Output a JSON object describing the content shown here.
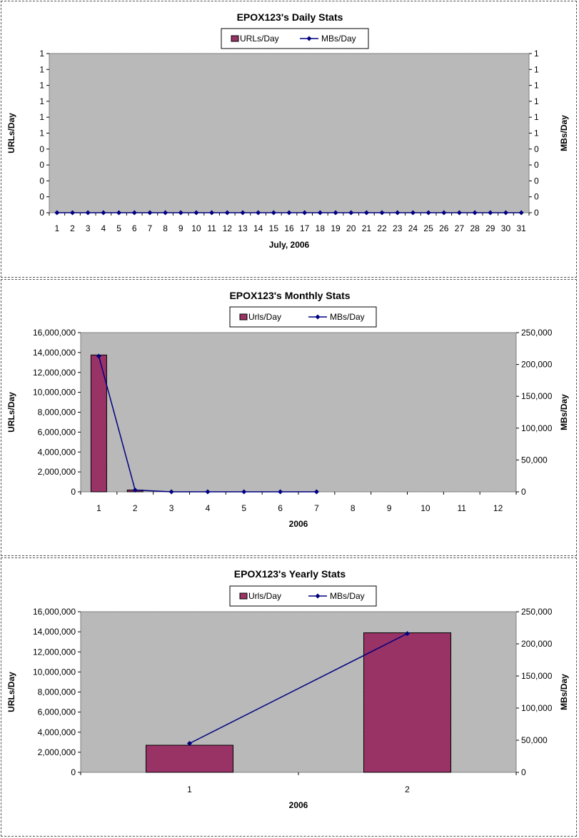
{
  "chart_data": [
    {
      "type": "bar",
      "title": "EPOX123's Daily Stats",
      "xlabel": "July, 2006",
      "ylabel": "URLs/Day",
      "y2label": "MBs/Day",
      "legend": {
        "placement": "top-center",
        "bar_label": "URLs/Day",
        "line_label": "MBs/Day"
      },
      "categories": [
        "1",
        "2",
        "3",
        "4",
        "5",
        "6",
        "7",
        "8",
        "9",
        "10",
        "11",
        "12",
        "13",
        "14",
        "15",
        "16",
        "17",
        "18",
        "19",
        "20",
        "21",
        "22",
        "23",
        "24",
        "25",
        "26",
        "27",
        "28",
        "29",
        "30",
        "31"
      ],
      "series": [
        {
          "name": "URLs/Day",
          "kind": "bar",
          "axis": "left",
          "values": [
            0,
            0,
            0,
            0,
            0,
            0,
            0,
            0,
            0,
            0,
            0,
            0,
            0,
            0,
            0,
            0,
            0,
            0,
            0,
            0,
            0,
            0,
            0,
            0,
            0,
            0,
            0,
            0,
            0,
            0,
            0
          ]
        },
        {
          "name": "MBs/Day",
          "kind": "line",
          "axis": "right",
          "values": [
            0,
            0,
            0,
            0,
            0,
            0,
            0,
            0,
            0,
            0,
            0,
            0,
            0,
            0,
            0,
            0,
            0,
            0,
            0,
            0,
            0,
            0,
            0,
            0,
            0,
            0,
            0,
            0,
            0,
            0,
            0
          ]
        }
      ],
      "ylim": [
        0,
        1
      ],
      "y2lim": [
        0,
        1
      ],
      "yticks": [
        "0",
        "0",
        "0",
        "0",
        "0",
        "1",
        "1",
        "1",
        "1",
        "1",
        "1"
      ],
      "y2ticks": [
        "0",
        "0",
        "0",
        "0",
        "0",
        "1",
        "1",
        "1",
        "1",
        "1",
        "1"
      ],
      "grid": false
    },
    {
      "type": "bar",
      "title": "EPOX123's Monthly Stats",
      "xlabel": "2006",
      "ylabel": "URLs/Day",
      "y2label": "MBs/Day",
      "legend": {
        "placement": "top-center",
        "bar_label": "Urls/Day",
        "line_label": "MBs/Day"
      },
      "categories": [
        "1",
        "2",
        "3",
        "4",
        "5",
        "6",
        "7",
        "8",
        "9",
        "10",
        "11",
        "12"
      ],
      "series": [
        {
          "name": "Urls/Day",
          "kind": "bar",
          "axis": "left",
          "values": [
            13750000,
            180000,
            0,
            0,
            0,
            0,
            0,
            null,
            null,
            null,
            null,
            null
          ]
        },
        {
          "name": "MBs/Day",
          "kind": "line",
          "axis": "right",
          "values": [
            213000,
            2800,
            0,
            0,
            0,
            0,
            0,
            null,
            null,
            null,
            null,
            null
          ]
        }
      ],
      "ylim": [
        0,
        16000000
      ],
      "y2lim": [
        0,
        250000
      ],
      "yticks": [
        "0",
        "2,000,000",
        "4,000,000",
        "6,000,000",
        "8,000,000",
        "10,000,000",
        "12,000,000",
        "14,000,000",
        "16,000,000"
      ],
      "y2ticks": [
        "0",
        "50,000",
        "100,000",
        "150,000",
        "200,000",
        "250,000"
      ],
      "grid": false
    },
    {
      "type": "bar",
      "title": "EPOX123's Yearly Stats",
      "xlabel": "2006",
      "ylabel": "URLs/Day",
      "y2label": "MBs/Day",
      "legend": {
        "placement": "top-center",
        "bar_label": "Urls/Day",
        "line_label": "MBs/Day"
      },
      "categories": [
        "1",
        "2"
      ],
      "series": [
        {
          "name": "Urls/Day",
          "kind": "bar",
          "axis": "left",
          "values": [
            2700000,
            13900000
          ]
        },
        {
          "name": "MBs/Day",
          "kind": "line",
          "axis": "right",
          "values": [
            45000,
            216000
          ]
        }
      ],
      "ylim": [
        0,
        16000000
      ],
      "y2lim": [
        0,
        250000
      ],
      "yticks": [
        "0",
        "2,000,000",
        "4,000,000",
        "6,000,000",
        "8,000,000",
        "10,000,000",
        "12,000,000",
        "14,000,000",
        "16,000,000"
      ],
      "y2ticks": [
        "0",
        "50,000",
        "100,000",
        "150,000",
        "200,000",
        "250,000"
      ],
      "grid": false
    }
  ],
  "colors": {
    "bar_fill": "#993366",
    "line": "#000080",
    "plot_background": "#c0c0c0",
    "panel_border": "#555555"
  }
}
